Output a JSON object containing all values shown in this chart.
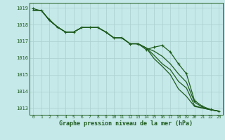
{
  "title": "Graphe pression niveau de la mer (hPa)",
  "background_color": "#c5e8e8",
  "grid_color": "#aacfcf",
  "line_color": "#1e5c1e",
  "label_color": "#1e5c1e",
  "x_labels": [
    "0",
    "1",
    "2",
    "3",
    "4",
    "5",
    "6",
    "7",
    "8",
    "9",
    "10",
    "11",
    "12",
    "13",
    "14",
    "15",
    "16",
    "17",
    "18",
    "19",
    "20",
    "21",
    "22",
    "23"
  ],
  "ylim": [
    1012.6,
    1019.3
  ],
  "yticks": [
    1013,
    1014,
    1015,
    1016,
    1017,
    1018,
    1019
  ],
  "series": [
    [
      1018.85,
      1018.85,
      1018.25,
      1017.85,
      1017.55,
      1017.55,
      1017.82,
      1017.82,
      1017.82,
      1017.55,
      1017.2,
      1017.2,
      1016.85,
      1016.85,
      1016.6,
      1015.95,
      1015.5,
      1015.0,
      1014.15,
      1013.7,
      1013.1,
      1013.0,
      1012.9,
      1012.82
    ],
    [
      1018.85,
      1018.85,
      1018.25,
      1017.85,
      1017.55,
      1017.55,
      1017.82,
      1017.82,
      1017.82,
      1017.55,
      1017.2,
      1017.2,
      1016.85,
      1016.85,
      1016.6,
      1016.15,
      1015.65,
      1015.3,
      1014.6,
      1014.2,
      1013.15,
      1013.0,
      1012.9,
      1012.82
    ],
    [
      1018.85,
      1018.85,
      1018.25,
      1017.85,
      1017.55,
      1017.55,
      1017.82,
      1017.82,
      1017.82,
      1017.55,
      1017.2,
      1017.2,
      1016.85,
      1016.85,
      1016.6,
      1016.4,
      1016.1,
      1015.65,
      1015.05,
      1014.55,
      1013.35,
      1013.05,
      1012.9,
      1012.82
    ],
    [
      1018.95,
      1018.82,
      1018.3,
      1017.85,
      1017.55,
      1017.55,
      1017.82,
      1017.82,
      1017.82,
      1017.55,
      1017.2,
      1017.2,
      1016.85,
      1016.85,
      1016.5,
      1016.65,
      1016.75,
      1016.35,
      1015.65,
      1015.05,
      1013.45,
      1013.1,
      1012.92,
      1012.82
    ]
  ],
  "marker_series": [
    3
  ],
  "marker": "+",
  "marker_size": 3.5,
  "linewidth": 0.9
}
